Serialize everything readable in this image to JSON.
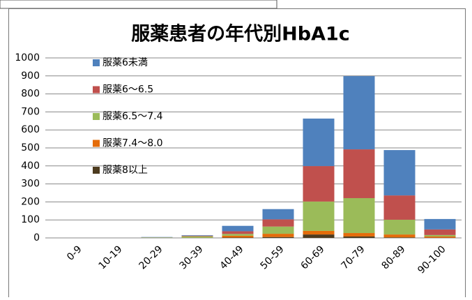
{
  "chart_data": {
    "type": "stacked_bar",
    "title": "服薬患者の年代別HbA1c",
    "categories": [
      "0-9",
      "10-19",
      "20-29",
      "30-39",
      "40-49",
      "50-59",
      "60-69",
      "70-79",
      "80-89",
      "90-100"
    ],
    "series": [
      {
        "name": "服薬6未満",
        "color": "#4f81bd",
        "values": [
          0,
          0,
          2,
          3,
          30,
          57,
          264,
          407,
          252,
          58
        ]
      },
      {
        "name": "服薬6～6.5",
        "color": "#c0504d",
        "values": [
          0,
          0,
          1,
          3,
          15,
          40,
          197,
          271,
          135,
          31
        ]
      },
      {
        "name": "服薬6.5～7.4",
        "color": "#9bbb59",
        "values": [
          0,
          0,
          2,
          8,
          10,
          40,
          163,
          194,
          82,
          8
        ]
      },
      {
        "name": "服薬7.4～8.0",
        "color": "#e46c0a",
        "values": [
          0,
          0,
          0,
          1,
          10,
          18,
          20,
          19,
          16,
          7
        ]
      },
      {
        "name": "服薬8以上",
        "color": "#4d3b1f",
        "values": [
          0,
          0,
          0,
          0,
          2,
          5,
          19,
          8,
          3,
          1
        ]
      }
    ],
    "ylim": [
      0,
      1000
    ],
    "yticks": [
      0,
      100,
      200,
      300,
      400,
      500,
      600,
      700,
      800,
      900,
      1000
    ],
    "grid": true,
    "legend": "top-left"
  }
}
